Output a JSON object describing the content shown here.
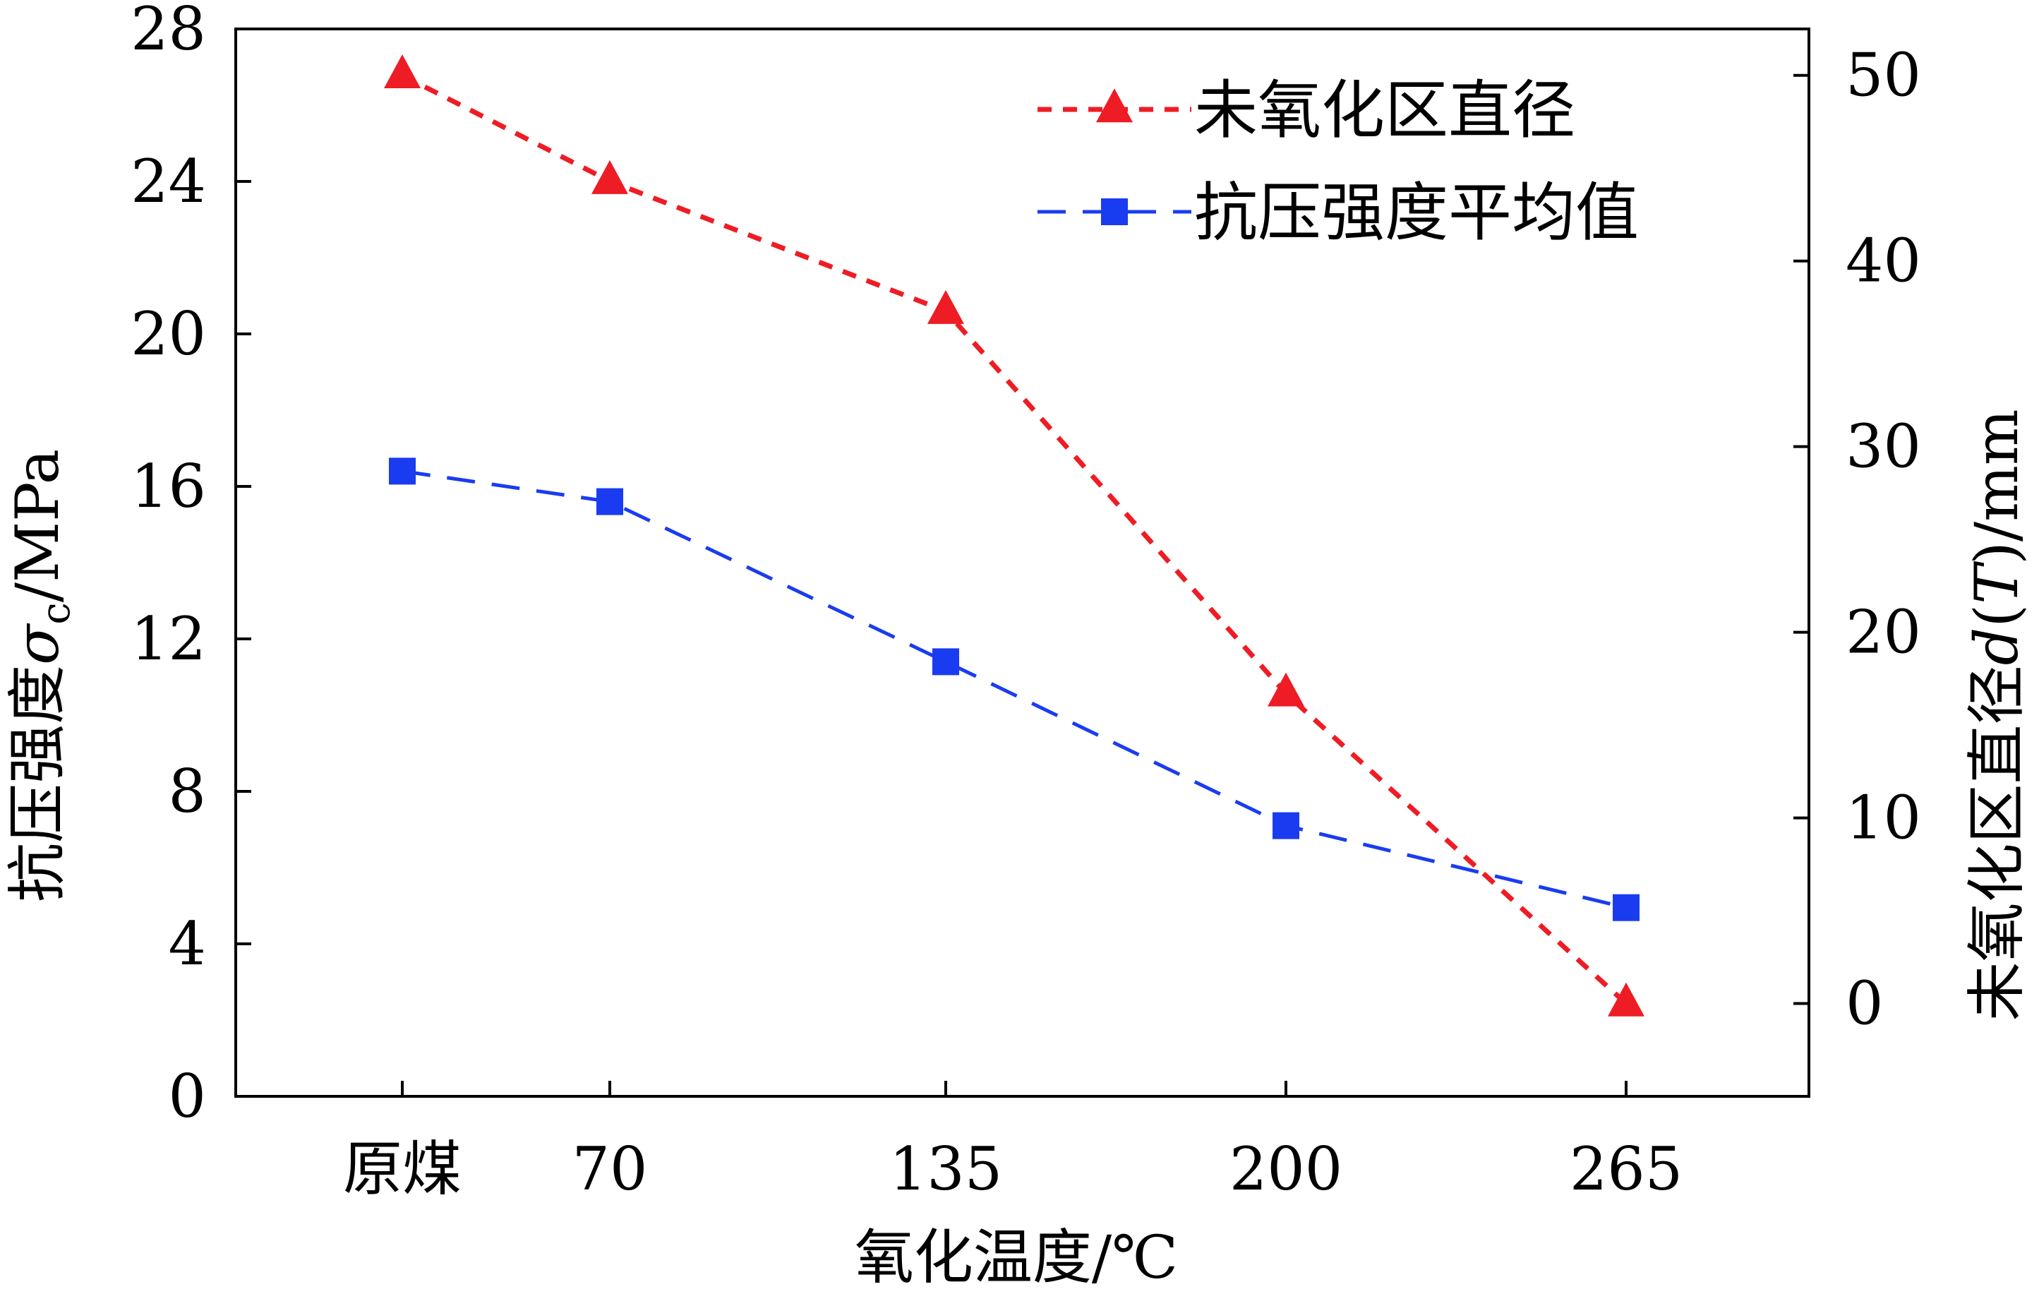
{
  "chart_data": {
    "type": "line",
    "categories": [
      "原煤",
      "70",
      "135",
      "200",
      "265"
    ],
    "xlabel": "氧化温度/℃",
    "ylabel_left": {
      "main": "抗压强度",
      "symbol": "σ",
      "subscript": "c",
      "unit": "/MPa"
    },
    "ylabel_right": {
      "main": "未氧化区直径",
      "symbol": "d",
      "open": "(",
      "var": "T",
      "close": ")",
      "unit": "/mm"
    },
    "ylim_left": [
      0,
      28
    ],
    "yticks_left": [
      "0",
      "4",
      "8",
      "12",
      "16",
      "20",
      "24",
      "28"
    ],
    "ylim_right": [
      -5,
      52.5
    ],
    "yticks_right": [
      "0",
      "10",
      "20",
      "30",
      "40",
      "50"
    ],
    "grid": false,
    "legend_position": "top-right",
    "series": [
      {
        "name": "未氧化区直径",
        "axis": "right",
        "marker": "triangle",
        "line": "short-dash",
        "color": "#ee1c24",
        "values": [
          50.0,
          44.3,
          37.3,
          16.7,
          0.0
        ]
      },
      {
        "name": "抗压强度平均值",
        "axis": "left",
        "marker": "square",
        "line": "long-dash",
        "color": "#1a3cf0",
        "values": [
          16.4,
          15.6,
          11.4,
          7.1,
          4.95
        ]
      }
    ]
  }
}
